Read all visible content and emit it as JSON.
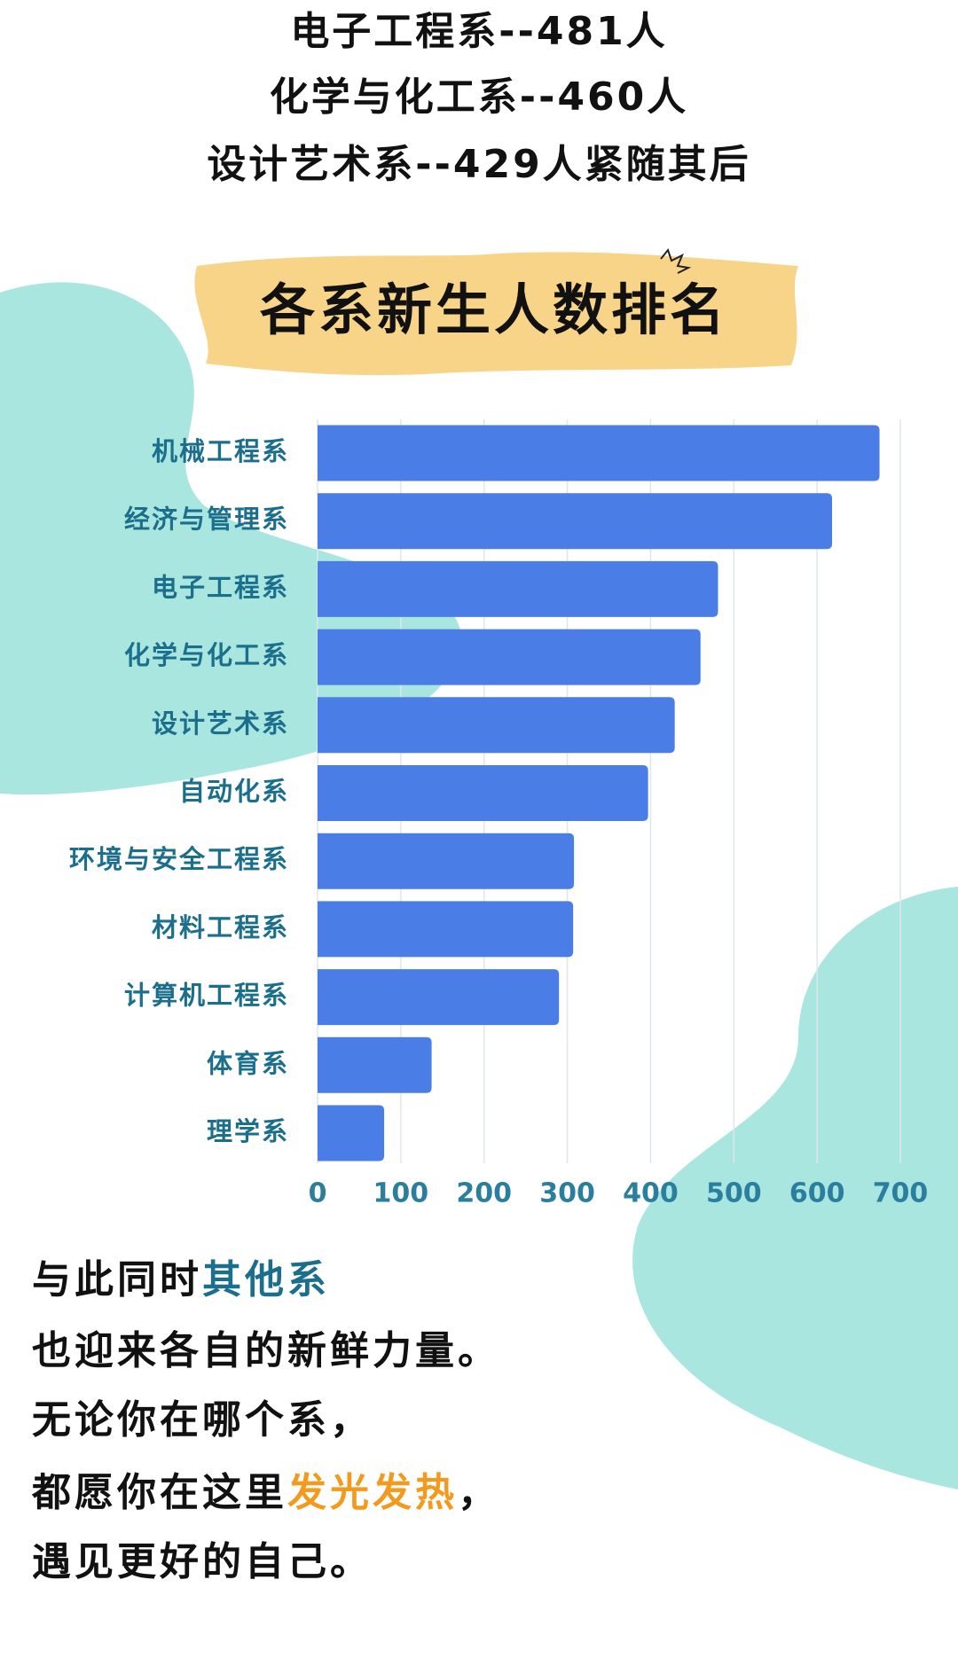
{
  "header": {
    "lines": [
      "电子工程系--481人",
      "化学与化工系--460人",
      "设计艺术系--429人紧随其后"
    ]
  },
  "chart_data": {
    "type": "barh",
    "title": "各系新生人数排名",
    "categories": [
      "机械工程系",
      "经济与管理系",
      "电子工程系",
      "化学与化工系",
      "设计艺术系",
      "自动化系",
      "环境与安全工程系",
      "材料工程系",
      "计算机工程系",
      "体育系",
      "理学系"
    ],
    "values": [
      675,
      618,
      481,
      460,
      429,
      397,
      308,
      307,
      290,
      137,
      80
    ],
    "color": "#4a7ee6",
    "xlim": [
      0,
      700
    ],
    "xticks": [
      0,
      100,
      200,
      300,
      400,
      500,
      600,
      700
    ],
    "grid": true
  },
  "footer": {
    "lines": [
      [
        "与此同时",
        {
          "text": "其他系",
          "color": "#1b6f8c"
        }
      ],
      [
        "也迎来各自的新鲜力量。"
      ],
      [
        "无论你在哪个系，"
      ],
      [
        "都愿你在这里",
        {
          "text": "发光发热",
          "color": "#f39a1e"
        },
        "，"
      ],
      [
        "遇见更好的自己。"
      ]
    ]
  }
}
